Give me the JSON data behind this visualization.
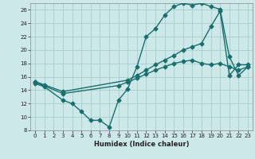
{
  "xlabel": "Humidex (Indice chaleur)",
  "bg_color": "#cce8e8",
  "line_color": "#1a6e6e",
  "xlim": [
    -0.5,
    23.5
  ],
  "ylim": [
    8,
    27
  ],
  "xticks": [
    0,
    1,
    2,
    3,
    4,
    5,
    6,
    7,
    8,
    9,
    10,
    11,
    12,
    13,
    14,
    15,
    16,
    17,
    18,
    19,
    20,
    21,
    22,
    23
  ],
  "yticks": [
    8,
    10,
    12,
    14,
    16,
    18,
    20,
    22,
    24,
    26
  ],
  "grid_color": "#a8cccc",
  "line1_x": [
    0,
    1,
    3,
    4,
    5,
    6,
    7,
    8,
    9,
    10,
    11,
    12,
    13,
    14,
    15,
    16,
    17,
    18,
    19,
    20,
    21,
    22,
    23
  ],
  "line1_y": [
    15,
    14.5,
    12.5,
    12,
    10.8,
    9.5,
    9.5,
    8.5,
    12.5,
    14.2,
    17.5,
    22,
    23.2,
    25.2,
    26.5,
    27,
    26.7,
    27,
    26.5,
    26.1,
    19,
    16.2,
    17.5
  ],
  "line2_x": [
    0,
    3,
    9,
    10,
    11,
    12,
    13,
    14,
    15,
    16,
    17,
    18,
    19,
    20,
    21,
    22,
    23
  ],
  "line2_y": [
    15.2,
    13.5,
    14.7,
    15.2,
    15.8,
    16.4,
    17.0,
    17.5,
    18.0,
    18.3,
    18.5,
    18.0,
    17.8,
    18.0,
    17.5,
    17.0,
    17.5
  ],
  "line3_x": [
    0,
    1,
    3,
    10,
    11,
    12,
    13,
    14,
    15,
    16,
    17,
    18,
    19,
    20,
    21,
    22,
    23
  ],
  "line3_y": [
    15.3,
    14.8,
    13.8,
    15.5,
    16.2,
    17.0,
    17.8,
    18.5,
    19.2,
    20.0,
    20.5,
    21.0,
    23.5,
    25.8,
    16.2,
    17.8,
    17.8
  ],
  "marker": "D",
  "markersize": 2.5,
  "linewidth": 1.0
}
